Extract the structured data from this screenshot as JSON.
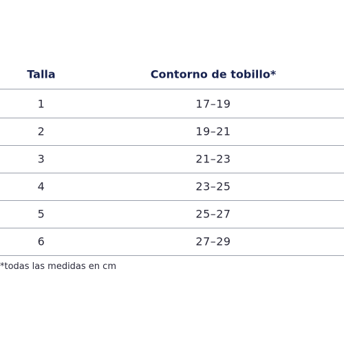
{
  "table": {
    "header": [
      "Talla",
      "Contorno de tobillo*"
    ],
    "rows": [
      [
        "1",
        "17–19"
      ],
      [
        "2",
        "19–21"
      ],
      [
        "3",
        "21–23"
      ],
      [
        "4",
        "23–25"
      ],
      [
        "5",
        "25–27"
      ],
      [
        "6",
        "27–29"
      ]
    ]
  },
  "footnote": "*todas las medidas en cm"
}
